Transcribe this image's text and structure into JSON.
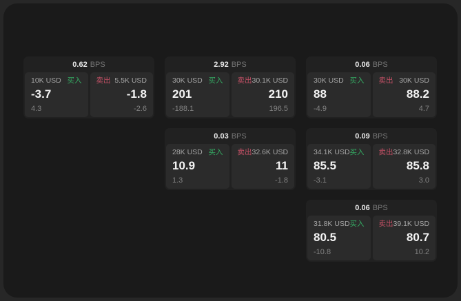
{
  "labels": {
    "bps_unit": "BPS",
    "buy": "买入",
    "sell": "卖出"
  },
  "colors": {
    "buy": "#35ab63",
    "sell": "#c25065",
    "card_bg": "#212121",
    "panel_bg": "#2b2b2b",
    "backdrop": "#272727",
    "window_bg": "#1a1a1a"
  },
  "cards": [
    {
      "row": 1,
      "col": 1,
      "bps": "0.62",
      "buy": {
        "amount": "10K USD",
        "value": "-3.7",
        "sub_value": "4.3"
      },
      "sell": {
        "amount": "5.5K USD",
        "value": "-1.8",
        "sub_value": "-2.6"
      }
    },
    {
      "row": 1,
      "col": 2,
      "bps": "2.92",
      "buy": {
        "amount": "30K USD",
        "value": "201",
        "sub_value": "-188.1"
      },
      "sell": {
        "amount": "30.1K USD",
        "value": "210",
        "sub_value": "196.5"
      }
    },
    {
      "row": 1,
      "col": 3,
      "bps": "0.06",
      "buy": {
        "amount": "30K USD",
        "value": "88",
        "sub_value": "-4.9"
      },
      "sell": {
        "amount": "30K USD",
        "value": "88.2",
        "sub_value": "4.7"
      }
    },
    {
      "row": 2,
      "col": 2,
      "bps": "0.03",
      "buy": {
        "amount": "28K USD",
        "value": "10.9",
        "sub_value": "1.3"
      },
      "sell": {
        "amount": "32.6K USD",
        "value": "11",
        "sub_value": "-1.8"
      }
    },
    {
      "row": 2,
      "col": 3,
      "bps": "0.09",
      "buy": {
        "amount": "34.1K USD",
        "value": "85.5",
        "sub_value": "-3.1"
      },
      "sell": {
        "amount": "32.8K USD",
        "value": "85.8",
        "sub_value": "3.0"
      }
    },
    {
      "row": 3,
      "col": 3,
      "bps": "0.06",
      "buy": {
        "amount": "31.8K USD",
        "value": "80.5",
        "sub_value": "-10.8"
      },
      "sell": {
        "amount": "39.1K USD",
        "value": "80.7",
        "sub_value": "10.2"
      }
    }
  ]
}
